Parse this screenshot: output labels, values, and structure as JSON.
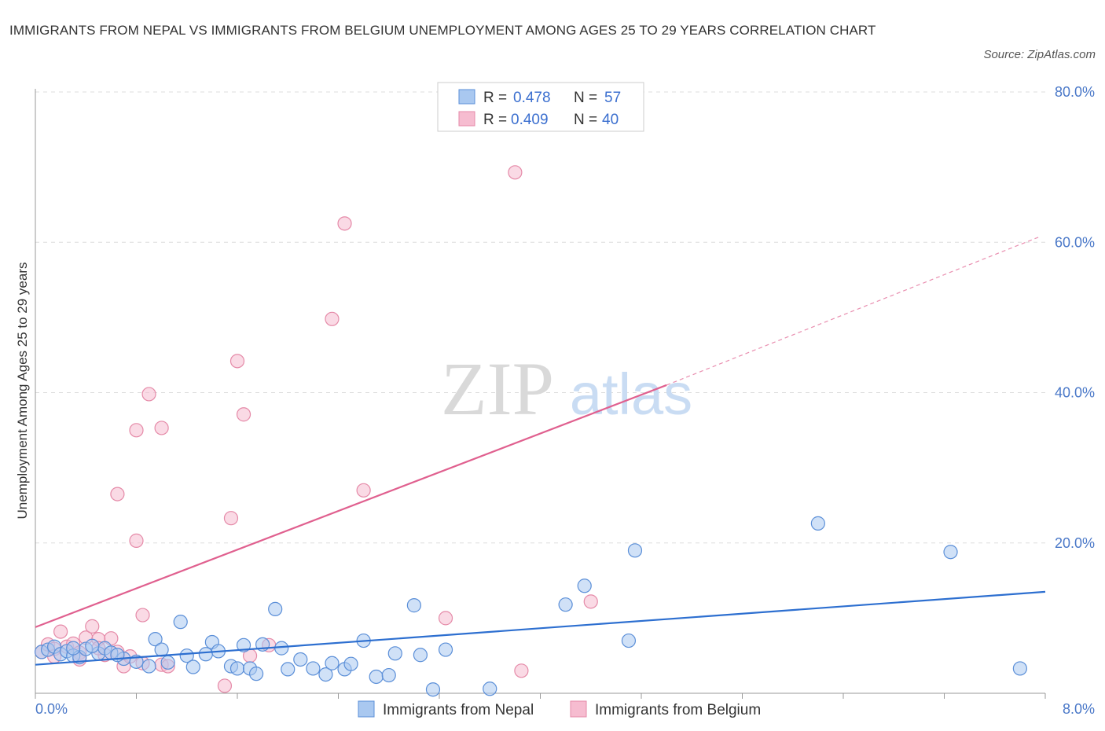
{
  "title": "IMMIGRANTS FROM NEPAL VS IMMIGRANTS FROM BELGIUM UNEMPLOYMENT AMONG AGES 25 TO 29 YEARS CORRELATION CHART",
  "source": "Source: ZipAtlas.com",
  "watermark": {
    "zip": "ZIP",
    "atlas": "atlas"
  },
  "colors": {
    "nepal_fill": "#a9c8f0",
    "nepal_stroke": "#5b8fd8",
    "nepal_line": "#2d6fd0",
    "belgium_fill": "#f6bcd0",
    "belgium_stroke": "#e58aa8",
    "belgium_line": "#e0608f",
    "tick_text": "#4a78c8",
    "grid": "#dddddd"
  },
  "legend": {
    "r_label": "R =",
    "n_label": "N =",
    "rows": [
      {
        "series": "nepal",
        "r": "0.478",
        "n": "57"
      },
      {
        "series": "belgium",
        "r": "0.409",
        "n": "40"
      }
    ]
  },
  "chart_data": {
    "type": "scatter",
    "title": "IMMIGRANTS FROM NEPAL VS IMMIGRANTS FROM BELGIUM UNEMPLOYMENT AMONG AGES 25 TO 29 YEARS CORRELATION CHART",
    "xlabel": "",
    "ylabel": "Unemployment Among Ages 25 to 29 years",
    "xlim": [
      0,
      8
    ],
    "ylim": [
      0,
      80
    ],
    "x_tick_labels": [
      "0.0%",
      "8.0%"
    ],
    "y_ticks": [
      20,
      40,
      60,
      80
    ],
    "y_tick_labels": [
      "20.0%",
      "40.0%",
      "60.0%",
      "80.0%"
    ],
    "grid": true,
    "legend_position": "top-center",
    "series": [
      {
        "name": "Immigrants from Nepal",
        "key": "nepal",
        "trend": {
          "x0": 0,
          "y0": 3.8,
          "x1": 8,
          "y1": 13.5,
          "dashed_to": null
        },
        "points": [
          [
            0.05,
            5.5
          ],
          [
            0.1,
            5.8
          ],
          [
            0.15,
            6.2
          ],
          [
            0.2,
            5.2
          ],
          [
            0.25,
            5.6
          ],
          [
            0.3,
            5.0
          ],
          [
            0.35,
            4.8
          ],
          [
            0.4,
            5.9
          ],
          [
            0.5,
            5.3
          ],
          [
            0.55,
            6.0
          ],
          [
            0.6,
            5.4
          ],
          [
            0.7,
            4.6
          ],
          [
            0.8,
            4.2
          ],
          [
            0.9,
            3.6
          ],
          [
            0.95,
            7.2
          ],
          [
            1.0,
            5.8
          ],
          [
            1.15,
            9.5
          ],
          [
            1.2,
            5.0
          ],
          [
            1.25,
            3.5
          ],
          [
            1.35,
            5.2
          ],
          [
            1.4,
            6.8
          ],
          [
            1.45,
            5.6
          ],
          [
            1.55,
            3.6
          ],
          [
            1.6,
            3.3
          ],
          [
            1.65,
            6.4
          ],
          [
            1.7,
            3.3
          ],
          [
            1.75,
            2.6
          ],
          [
            1.8,
            6.5
          ],
          [
            1.9,
            11.2
          ],
          [
            1.95,
            6.0
          ],
          [
            2.0,
            3.2
          ],
          [
            2.1,
            4.5
          ],
          [
            2.2,
            3.3
          ],
          [
            2.3,
            2.5
          ],
          [
            2.35,
            4.0
          ],
          [
            2.45,
            3.2
          ],
          [
            2.5,
            3.9
          ],
          [
            2.6,
            7.0
          ],
          [
            2.7,
            2.2
          ],
          [
            2.8,
            2.4
          ],
          [
            2.85,
            5.3
          ],
          [
            3.0,
            11.7
          ],
          [
            3.05,
            5.1
          ],
          [
            3.15,
            0.5
          ],
          [
            3.25,
            5.8
          ],
          [
            3.6,
            0.6
          ],
          [
            4.2,
            11.8
          ],
          [
            4.35,
            14.3
          ],
          [
            4.7,
            7.0
          ],
          [
            4.75,
            19.0
          ],
          [
            6.2,
            22.6
          ],
          [
            7.25,
            18.8
          ],
          [
            7.8,
            3.3
          ],
          [
            0.3,
            6.0
          ],
          [
            0.45,
            6.3
          ],
          [
            0.65,
            5.1
          ],
          [
            1.05,
            4.1
          ]
        ]
      },
      {
        "name": "Immigrants from Belgium",
        "key": "belgium",
        "trend": {
          "x0": 0,
          "y0": 8.8,
          "x1": 5.0,
          "y1": 41.0,
          "dashed_to": {
            "x": 7.95,
            "y": 60.7
          }
        },
        "points": [
          [
            0.05,
            5.5
          ],
          [
            0.1,
            6.5
          ],
          [
            0.15,
            5.9
          ],
          [
            0.2,
            8.2
          ],
          [
            0.25,
            6.2
          ],
          [
            0.3,
            6.6
          ],
          [
            0.35,
            5.4
          ],
          [
            0.4,
            7.4
          ],
          [
            0.45,
            8.9
          ],
          [
            0.5,
            7.2
          ],
          [
            0.55,
            5.1
          ],
          [
            0.6,
            7.3
          ],
          [
            0.65,
            5.5
          ],
          [
            0.7,
            3.6
          ],
          [
            0.75,
            4.9
          ],
          [
            0.85,
            4.0
          ],
          [
            1.0,
            3.8
          ],
          [
            0.8,
            20.3
          ],
          [
            0.85,
            10.4
          ],
          [
            1.05,
            3.6
          ],
          [
            1.5,
            1.0
          ],
          [
            1.55,
            23.3
          ],
          [
            1.6,
            44.2
          ],
          [
            1.65,
            37.1
          ],
          [
            1.7,
            5.0
          ],
          [
            1.85,
            6.4
          ],
          [
            0.65,
            26.5
          ],
          [
            0.8,
            35.0
          ],
          [
            0.9,
            39.8
          ],
          [
            1.0,
            35.3
          ],
          [
            2.35,
            49.8
          ],
          [
            2.45,
            62.5
          ],
          [
            2.6,
            27.0
          ],
          [
            3.25,
            10.0
          ],
          [
            3.8,
            69.3
          ],
          [
            3.85,
            3.0
          ],
          [
            4.4,
            12.2
          ],
          [
            0.15,
            4.9
          ],
          [
            0.35,
            4.5
          ],
          [
            0.5,
            6.0
          ]
        ]
      }
    ]
  }
}
